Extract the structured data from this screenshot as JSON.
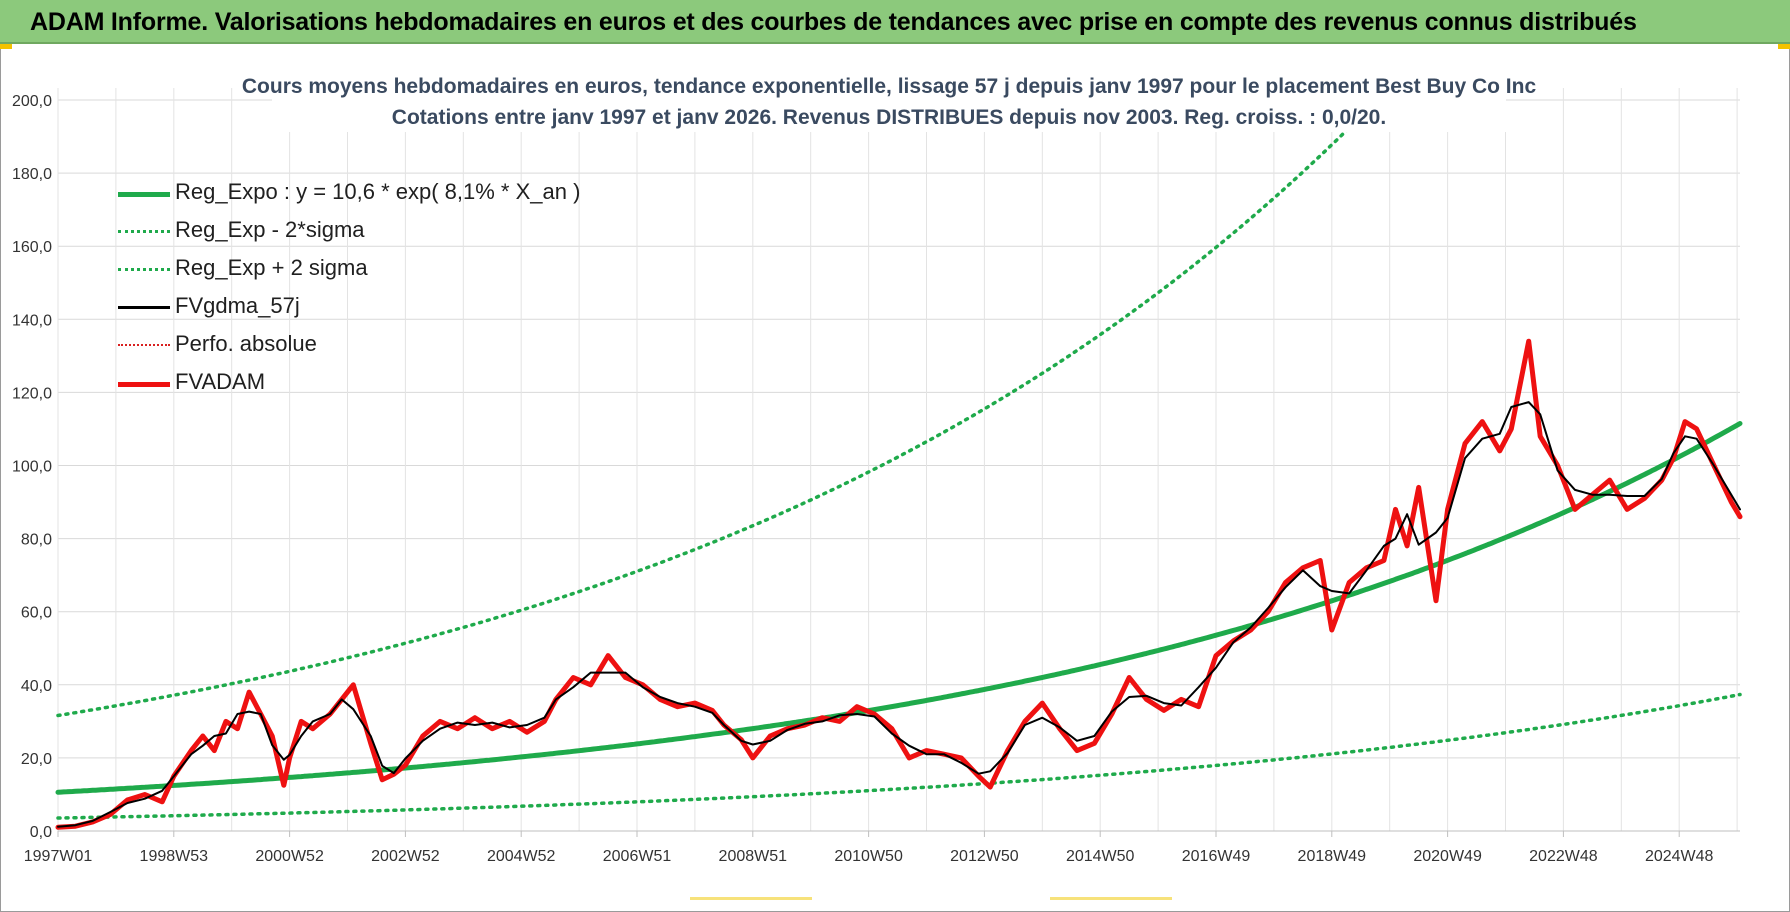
{
  "header": {
    "title": "ADAM Informe. Valorisations hebdomadaires en euros et des courbes de tendances avec prise en compte des revenus connus distribués"
  },
  "chart_data": {
    "type": "line",
    "title_line1": "Cours moyens hebdomadaires en euros, tendance exponentielle, lissage 57 j depuis janv 1997  pour le placement Best Buy Co Inc",
    "title_line2": "Cotations entre janv 1997 et janv 2026. Revenus DISTRIBUES depuis nov 2003. Reg. croiss. : 0,0/20.",
    "xlabel": "",
    "ylabel": "",
    "ylim": [
      0,
      200
    ],
    "xlim": [
      1997.0,
      2026.05
    ],
    "grid": true,
    "legend_position": "top-left",
    "y_ticks": [
      "0,0",
      "20,0",
      "40,0",
      "60,0",
      "80,0",
      "100,0",
      "120,0",
      "140,0",
      "160,0",
      "180,0",
      "200,0"
    ],
    "x_ticks": [
      {
        "label": "1997W01",
        "x": 1997.0
      },
      {
        "label": "1998W53",
        "x": 1999.0
      },
      {
        "label": "2000W52",
        "x": 2001.0
      },
      {
        "label": "2002W52",
        "x": 2003.0
      },
      {
        "label": "2004W52",
        "x": 2005.0
      },
      {
        "label": "2006W51",
        "x": 2007.0
      },
      {
        "label": "2008W51",
        "x": 2009.0
      },
      {
        "label": "2010W50",
        "x": 2011.0
      },
      {
        "label": "2012W50",
        "x": 2013.0
      },
      {
        "label": "2014W50",
        "x": 2015.0
      },
      {
        "label": "2016W49",
        "x": 2017.0
      },
      {
        "label": "2018W49",
        "x": 2019.0
      },
      {
        "label": "2020W49",
        "x": 2021.0
      },
      {
        "label": "2022W48",
        "x": 2023.0
      },
      {
        "label": "2024W48",
        "x": 2025.0
      }
    ],
    "series": [
      {
        "name": "Reg_Expo : y = 10,6 * exp( 8,1% *  X_an )",
        "style": "solid-thick",
        "color": "#1faa4b",
        "trend": {
          "a": 10.6,
          "rate": 0.081,
          "x0": 1997.0
        }
      },
      {
        "name": "Reg_Exp - 2*sigma",
        "style": "dotted",
        "color": "#1faa4b",
        "trend": {
          "a": 3.55,
          "rate": 0.081,
          "x0": 1997.0
        }
      },
      {
        "name": "Reg_Exp + 2 sigma",
        "style": "dotted",
        "color": "#1faa4b",
        "trend": {
          "a": 31.6,
          "rate": 0.081,
          "x0": 1997.0
        }
      },
      {
        "name": "FVgdma_57j",
        "style": "solid",
        "color": "#000000",
        "smoothing_of": "FVADAM"
      },
      {
        "name": "Perfo. absolue",
        "style": "dotted-thin",
        "color": "#d92020"
      },
      {
        "name": "FVADAM",
        "style": "solid-thick",
        "color": "#ee1111",
        "x": [
          1997.0,
          1997.3,
          1997.6,
          1997.9,
          1998.2,
          1998.5,
          1998.8,
          1999.0,
          1999.3,
          1999.5,
          1999.7,
          1999.9,
          2000.1,
          2000.3,
          2000.5,
          2000.7,
          2000.9,
          2001.0,
          2001.2,
          2001.4,
          2001.7,
          2001.9,
          2002.1,
          2002.4,
          2002.6,
          2002.8,
          2003.0,
          2003.3,
          2003.6,
          2003.9,
          2004.2,
          2004.5,
          2004.8,
          2005.1,
          2005.4,
          2005.6,
          2005.9,
          2006.2,
          2006.5,
          2006.8,
          2007.1,
          2007.4,
          2007.7,
          2008.0,
          2008.3,
          2008.5,
          2008.8,
          2009.0,
          2009.3,
          2009.6,
          2009.9,
          2010.2,
          2010.5,
          2010.8,
          2011.1,
          2011.4,
          2011.7,
          2012.0,
          2012.3,
          2012.6,
          2012.9,
          2013.1,
          2013.4,
          2013.7,
          2014.0,
          2014.3,
          2014.6,
          2014.9,
          2015.2,
          2015.5,
          2015.8,
          2016.1,
          2016.4,
          2016.7,
          2017.0,
          2017.3,
          2017.6,
          2017.9,
          2018.2,
          2018.5,
          2018.8,
          2019.0,
          2019.3,
          2019.6,
          2019.9,
          2020.1,
          2020.3,
          2020.5,
          2020.8,
          2021.0,
          2021.3,
          2021.6,
          2021.9,
          2022.1,
          2022.4,
          2022.6,
          2022.9,
          2023.2,
          2023.5,
          2023.8,
          2024.1,
          2024.4,
          2024.7,
          2024.9,
          2025.1,
          2025.3,
          2025.6,
          2025.9,
          2026.05
        ],
        "values": [
          1.0,
          1.3,
          2.5,
          4.5,
          8.5,
          10.0,
          8.0,
          15.0,
          22.0,
          26.0,
          22.0,
          30.0,
          28.0,
          38.0,
          32.0,
          26.0,
          12.5,
          20.0,
          30.0,
          28.0,
          32.0,
          36.0,
          40.0,
          24.0,
          14.0,
          15.5,
          18.0,
          26.0,
          30.0,
          28.0,
          31.0,
          28.0,
          30.0,
          27.0,
          30.0,
          36.0,
          42.0,
          40.0,
          48.0,
          42.0,
          40.0,
          36.0,
          34.0,
          35.0,
          33.0,
          29.0,
          25.0,
          20.0,
          26.0,
          28.0,
          29.0,
          31.0,
          30.0,
          34.0,
          32.0,
          28.0,
          20.0,
          22.0,
          21.0,
          20.0,
          15.0,
          12.0,
          22.0,
          30.0,
          35.0,
          28.0,
          22.0,
          24.0,
          32.0,
          42.0,
          36.0,
          33.0,
          36.0,
          34.0,
          48.0,
          52.0,
          55.0,
          60.0,
          68.0,
          72.0,
          74.0,
          55.0,
          68.0,
          72.0,
          74.0,
          88.0,
          78.0,
          94.0,
          63.0,
          88.0,
          106.0,
          112.0,
          104.0,
          110.0,
          134.0,
          108.0,
          100.0,
          88.0,
          92.0,
          96.0,
          88.0,
          91.0,
          96.0,
          102.0,
          112.0,
          110.0,
          100.0,
          90.0,
          86.0
        ]
      }
    ]
  }
}
